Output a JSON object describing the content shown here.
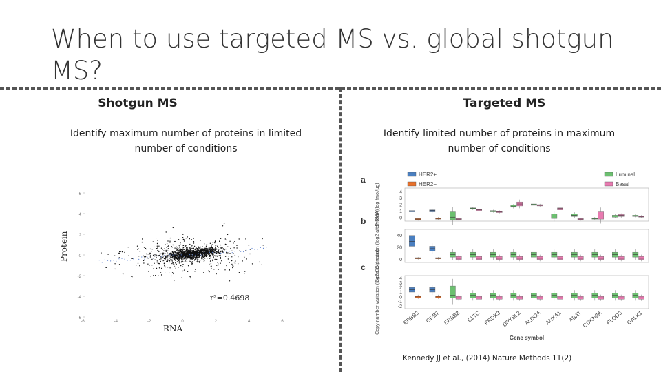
{
  "slide": {
    "title": "When to use targeted MS vs. global shotgun MS?"
  },
  "left": {
    "heading": "Shotgun MS",
    "description": "Identify maximum number of proteins in limited number of conditions",
    "figure": {
      "ylabel": "Protein",
      "xlabel": "RNA",
      "r2_label": "r²=0.4698",
      "xticks": [
        "-6",
        "-4",
        "-2",
        "0",
        "2",
        "4",
        "6"
      ],
      "yticks": [
        "6",
        "4",
        "2",
        "0",
        "-2",
        "-4",
        "-6"
      ]
    }
  },
  "right": {
    "heading": "Targeted MS",
    "description": "Identify limited number of proteins in maximum number of conditions",
    "citation": "Kennedy JJ et al., (2014) Nature Methods 11(2)"
  },
  "chart_data": [
    {
      "type": "scatter",
      "title": "",
      "xlabel": "RNA",
      "ylabel": "Protein",
      "annotation": "r²=0.4698",
      "xlim": [
        -6,
        6
      ],
      "ylim": [
        -6,
        6
      ],
      "grid": false,
      "points_cloud": {
        "center": [
          0.5,
          0.1
        ],
        "description_count": "dense cloud"
      }
    },
    {
      "type": "box",
      "xlabel": "Gene symbol",
      "categories": [
        "ERBB2",
        "GRB7",
        "ERBB2",
        "CLTC",
        "PRDX3",
        "DPYSL2",
        "ALDOA",
        "ANXA1",
        "ABAT",
        "CDKN2A",
        "PLOD3",
        "GALK1"
      ],
      "legend": [
        {
          "name": "HER2+",
          "color": "#4a7fc0"
        },
        {
          "name": "HER2−",
          "color": "#e8702a"
        },
        {
          "name": "Luminal",
          "color": "#6cc070"
        },
        {
          "name": "Basal",
          "color": "#e87ab0"
        }
      ],
      "panels": [
        {
          "letter": "a",
          "ylabel": "Protein (log fmol/μg)",
          "yticks": [
            "4",
            "3",
            "2",
            "1",
            "0"
          ],
          "ylim": [
            -0.5,
            4.5
          ]
        },
        {
          "letter": "b",
          "ylabel": "Gene expression (log2 after RMA)",
          "yticks": [
            "40",
            "20",
            "0"
          ],
          "ylim": [
            -5,
            50
          ]
        },
        {
          "letter": "c",
          "ylabel": "Copy-number variation (log2 CGH ratio)",
          "yticks": [
            "4",
            "3",
            "2",
            "1",
            "0",
            "-1",
            "-2"
          ],
          "ylim": [
            -2.5,
            4.5
          ]
        }
      ]
    }
  ]
}
